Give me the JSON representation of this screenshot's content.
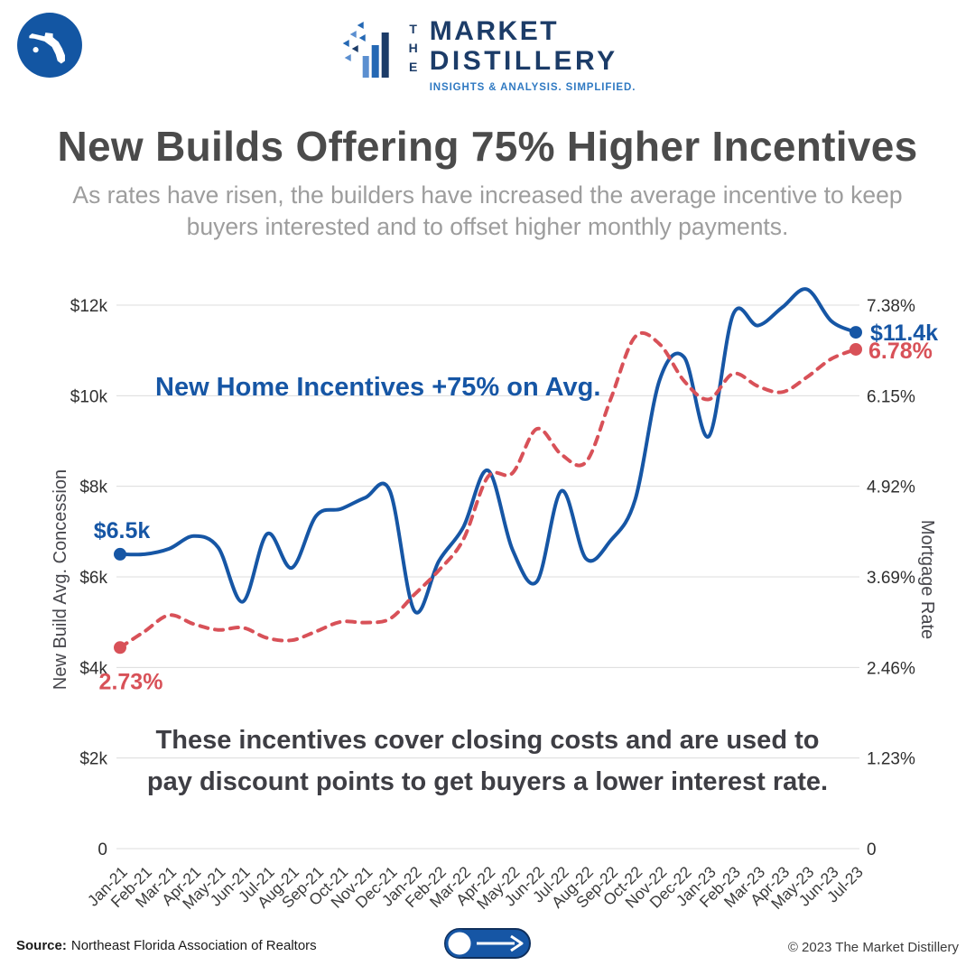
{
  "header": {
    "logo": {
      "the": "THE",
      "name_line1": "MARKET",
      "name_line2": "DISTILLERY",
      "tagline": "INSIGHTS & ANALYSIS. SIMPLIFIED."
    }
  },
  "title": "New Builds Offering 75% Higher Incentives",
  "subtitle": "As rates have risen, the builders have increased the average incentive to keep buyers interested and to offset higher monthly payments.",
  "chart_data": {
    "type": "line",
    "categories": [
      "Jan-21",
      "Feb-21",
      "Mar-21",
      "Apr-21",
      "May-21",
      "Jun-21",
      "Jul-21",
      "Aug-21",
      "Sep-21",
      "Oct-21",
      "Nov-21",
      "Dec-21",
      "Jan-22",
      "Feb-22",
      "Mar-22",
      "Apr-22",
      "May-22",
      "Jun-22",
      "Jul-22",
      "Aug-22",
      "Sep-22",
      "Oct-22",
      "Nov-22",
      "Dec-22",
      "Jan-23",
      "Feb-23",
      "Mar-23",
      "Apr-23",
      "May-23",
      "Jun-23",
      "Jul-23"
    ],
    "series": [
      {
        "id": "incentives",
        "name": "New Build Avg. Concession",
        "axis": "left",
        "unit": "$k",
        "color": "#1656a5",
        "style": "solid",
        "start_label": "$6.5k",
        "end_label": "$11.4k",
        "values": [
          6.5,
          6.5,
          6.62,
          6.9,
          6.65,
          5.45,
          6.95,
          6.2,
          7.35,
          7.5,
          7.75,
          7.9,
          5.25,
          6.35,
          7.1,
          8.35,
          6.6,
          5.9,
          7.9,
          6.4,
          6.8,
          7.7,
          10.35,
          10.85,
          9.1,
          11.8,
          11.55,
          11.95,
          12.35,
          11.65,
          11.4
        ]
      },
      {
        "id": "mortgage-rate",
        "name": "Mortgage Rate",
        "axis": "right",
        "unit": "%",
        "color": "#d85158",
        "style": "dashed",
        "start_label": "2.73%",
        "end_label": "6.78%",
        "values": [
          2.73,
          2.95,
          3.17,
          3.05,
          2.97,
          3.0,
          2.86,
          2.83,
          2.95,
          3.08,
          3.07,
          3.12,
          3.45,
          3.78,
          4.2,
          5.05,
          5.1,
          5.7,
          5.35,
          5.25,
          6.1,
          6.95,
          6.85,
          6.35,
          6.1,
          6.45,
          6.28,
          6.2,
          6.4,
          6.65,
          6.78
        ]
      }
    ],
    "left_axis": {
      "title": "New Build Avg. Concession",
      "min": 0,
      "max": 12,
      "ticks": [
        "$12k",
        "$10k",
        "$8k",
        "$6k",
        "$4k",
        "$2k",
        "0"
      ]
    },
    "right_axis": {
      "title": "Mortgage Rate",
      "min": 0,
      "max": 7.38,
      "ticks": [
        "7.38%",
        "6.15%",
        "4.92%",
        "3.69%",
        "2.46%",
        "1.23%",
        "0"
      ]
    },
    "grid": true,
    "legend": "none",
    "annotations": {
      "incentives_note": "New Home Incentives +75% on Avg.",
      "closing_costs_note": "These incentives cover closing costs and are used to pay discount points to get buyers a lower interest rate."
    }
  },
  "footer": {
    "source_label": "Source:",
    "source_text": "Northeast Florida Association of Realtors",
    "copyright": "© 2023 The Market Distillery"
  },
  "colors": {
    "incentives_blue": "#1656a5",
    "rate_red": "#d85158",
    "navy": "#1c3c68",
    "logo_blue": "#2f79c2",
    "title_gray": "#4b4b4b",
    "subtitle_gray": "#9d9d9d"
  }
}
